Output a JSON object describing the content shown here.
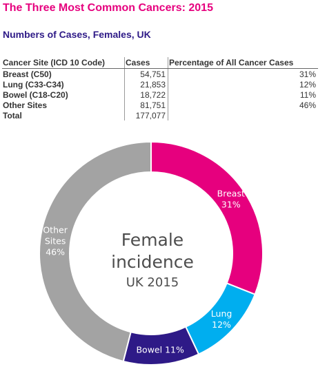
{
  "page": {
    "title": "The Three Most Common Cancers: 2015",
    "subtitle": "Numbers of Cases, Females, UK"
  },
  "table": {
    "headers": [
      "Cancer Site (ICD 10 Code)",
      "Cases",
      "Percentage of All Cancer Cases"
    ],
    "rows": [
      {
        "site": "Breast (C50)",
        "cases": "54,751",
        "pct": "31%"
      },
      {
        "site": "Lung (C33-C34)",
        "cases": "21,853",
        "pct": "12%"
      },
      {
        "site": "Bowel (C18-C20)",
        "cases": "18,722",
        "pct": "11%"
      },
      {
        "site": "Other Sites",
        "cases": "81,751",
        "pct": "46%"
      },
      {
        "site": "Total",
        "cases": "177,077",
        "pct": ""
      }
    ]
  },
  "chart_data": {
    "type": "pie",
    "style": "donut",
    "center_text": [
      "Female",
      "incidence"
    ],
    "center_subtext": "UK 2015",
    "slices": [
      {
        "label": "Breast",
        "value": 31,
        "value_label": "31%",
        "color": "#e6007e"
      },
      {
        "label": "Lung",
        "value": 12,
        "value_label": "12%",
        "color": "#00aeef"
      },
      {
        "label": "Bowel",
        "value": 11,
        "value_label": "11%",
        "color": "#2e1a87",
        "inline": true
      },
      {
        "label": "Other Sites",
        "value": 46,
        "value_label": "46%",
        "color": "#a3a3a3",
        "two_line": true
      }
    ]
  },
  "colors": {
    "title": "#e6007e",
    "subtitle": "#2e1a87",
    "center_text": "#4d4d4d"
  }
}
